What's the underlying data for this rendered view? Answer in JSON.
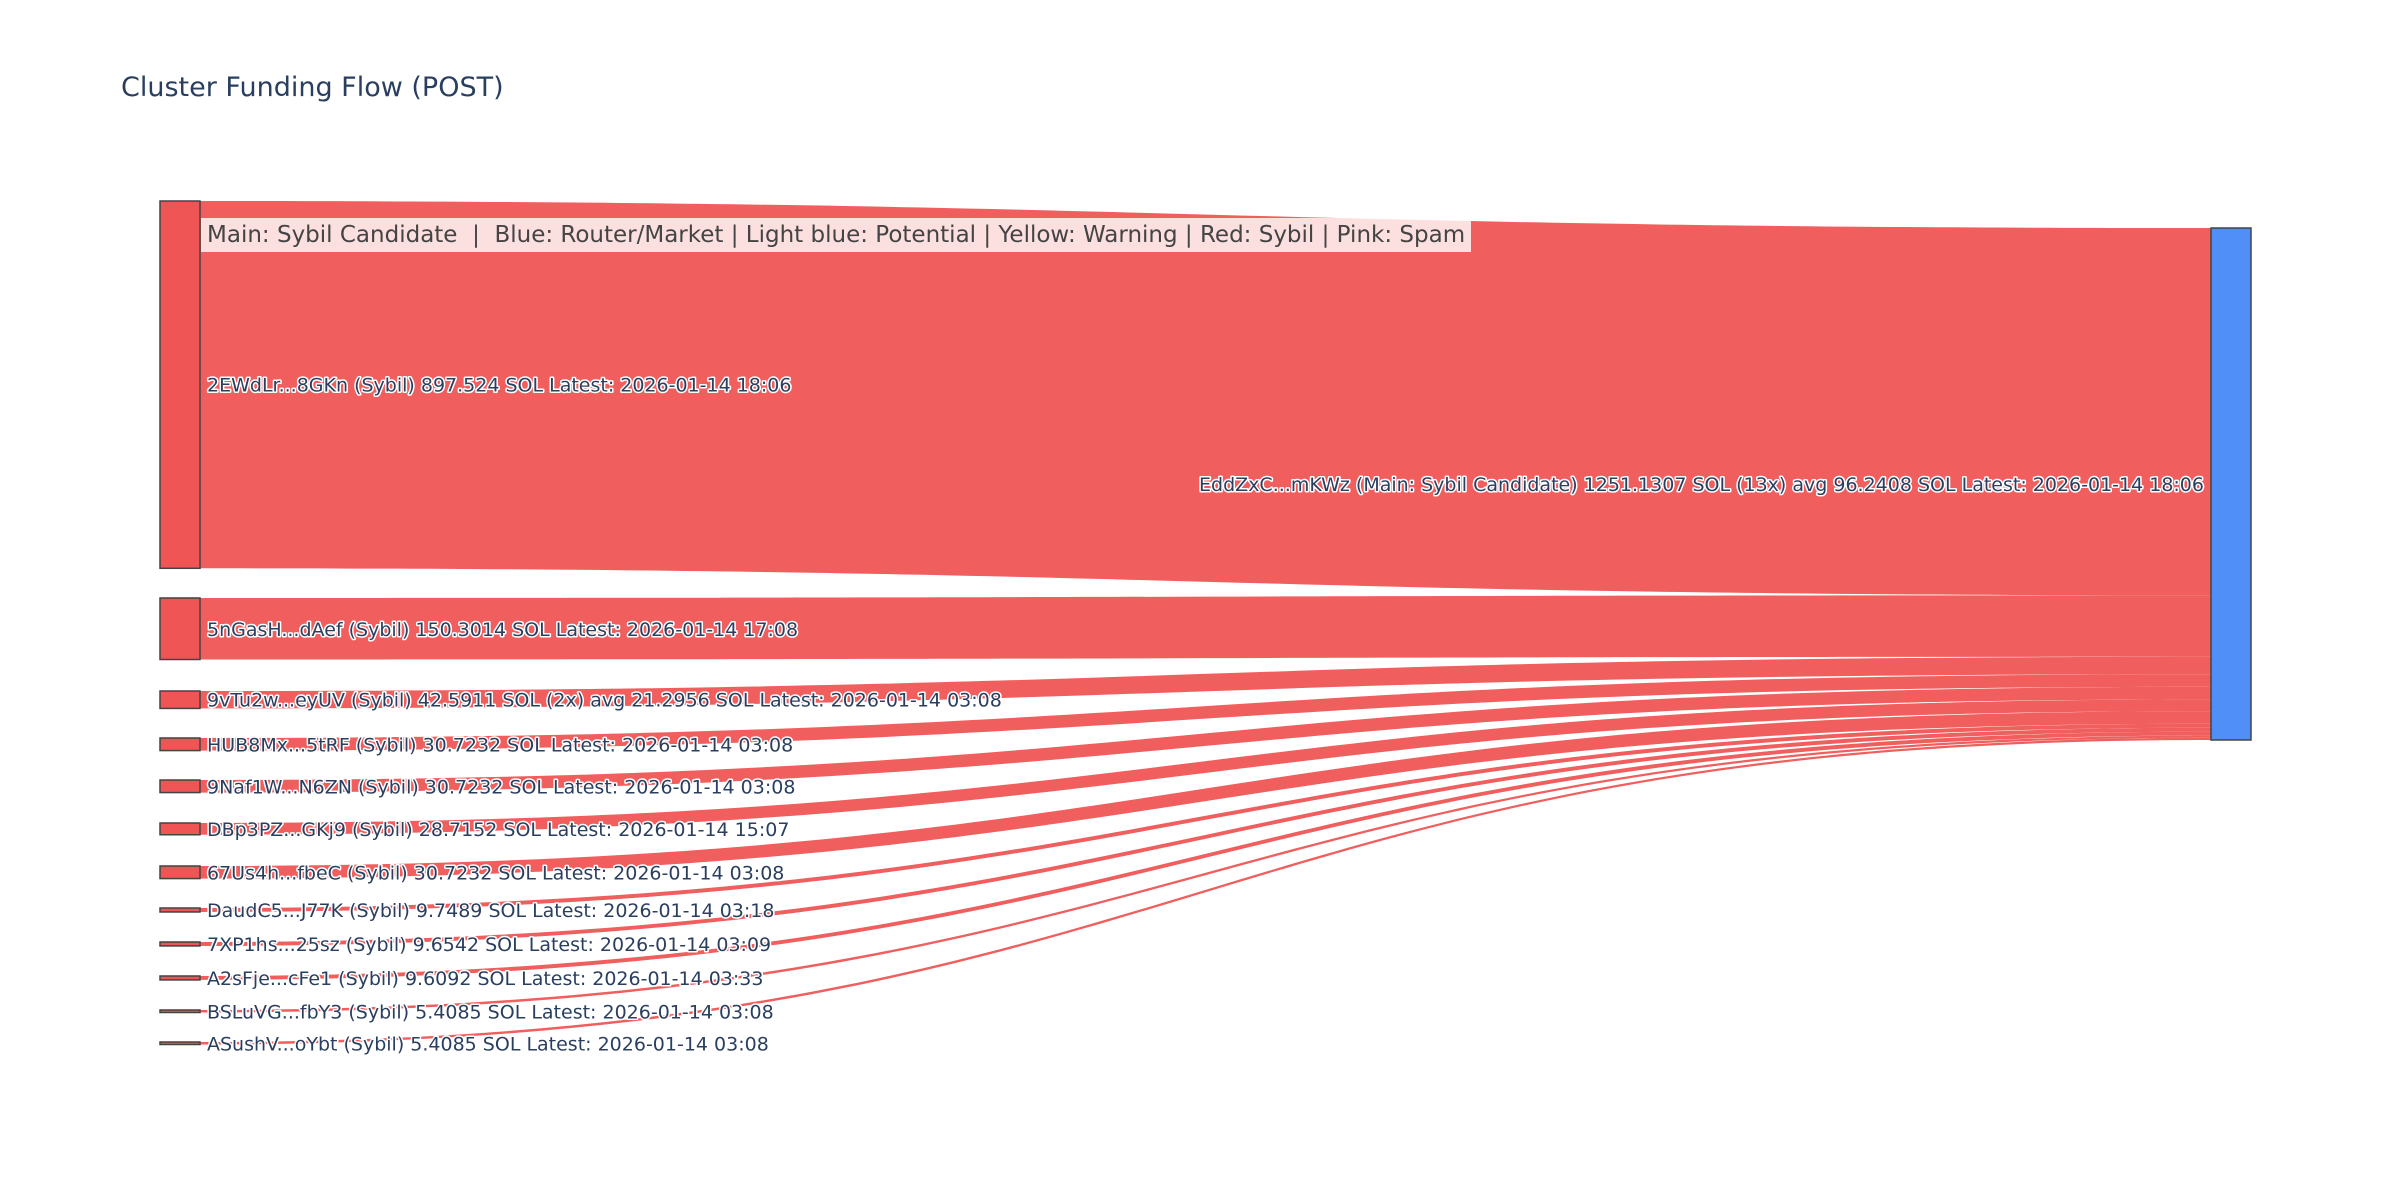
{
  "chart_data": {
    "type": "sankey",
    "title": "Cluster Funding Flow (POST)",
    "annotation": "Main: Sybil Candidate  |  Blue: Router/Market | Light blue: Potential | Yellow: Warning | Red: Sybil | Pink: Spam",
    "colors": {
      "sybil": "#ef5555",
      "main": "#4f8ff7",
      "link": "#ef5555",
      "text": "#2a3f5f"
    },
    "target": {
      "label": "EddZxC...mKWz (Main: Sybil Candidate) 1251.1307 SOL (13x) avg 96.2408 SOL Latest: 2026-01-14 18:06",
      "value": 1251.1307
    },
    "sources": [
      {
        "label": "2EWdLr...8GKn (Sybil) 897.524 SOL Latest: 2026-01-14 18:06",
        "value": 897.524
      },
      {
        "label": "5nGasH...dAef (Sybil) 150.3014 SOL Latest: 2026-01-14 17:08",
        "value": 150.3014
      },
      {
        "label": "9vTu2w...eyUV (Sybil) 42.5911 SOL (2x) avg 21.2956 SOL Latest: 2026-01-14 03:08",
        "value": 42.5911
      },
      {
        "label": "HUB8Mx...5tRF (Sybil) 30.7232 SOL Latest: 2026-01-14 03:08",
        "value": 30.7232
      },
      {
        "label": "9Naf1W...N6ZN (Sybil) 30.7232 SOL Latest: 2026-01-14 03:08",
        "value": 30.7232
      },
      {
        "label": "DBp3PZ...GKj9 (Sybil) 28.7152 SOL Latest: 2026-01-14 15:07",
        "value": 28.7152
      },
      {
        "label": "67Us4h...fbeC (Sybil) 30.7232 SOL Latest: 2026-01-14 03:08",
        "value": 30.7232
      },
      {
        "label": "DaudC5...J77K (Sybil) 9.7489 SOL Latest: 2026-01-14 03:18",
        "value": 9.7489
      },
      {
        "label": "7XP1hs...25sz (Sybil) 9.6542 SOL Latest: 2026-01-14 03:09",
        "value": 9.6542
      },
      {
        "label": "A2sFje...cFe1 (Sybil) 9.6092 SOL Latest: 2026-01-14 03:33",
        "value": 9.6092
      },
      {
        "label": "BSLuVG...fbY3 (Sybil) 5.4085 SOL Latest: 2026-01-14 03:08",
        "value": 5.4085
      },
      {
        "label": "ASushV...oYbt (Sybil) 5.4085 SOL Latest: 2026-01-14 03:08",
        "value": 5.4085
      }
    ]
  }
}
